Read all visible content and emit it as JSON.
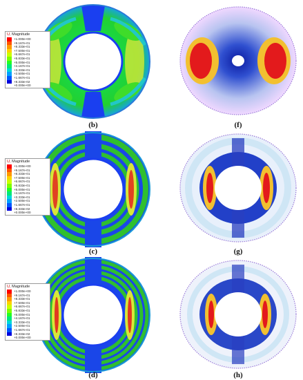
{
  "captions": {
    "b": "(b)",
    "c": "(c)",
    "d": "(d)",
    "f": "(f)",
    "g": "(g)",
    "h": "(h)"
  },
  "legend": {
    "title_prefix": "U,",
    "title_text": "Magnitude",
    "levels": [
      "+1.000e+00",
      "+9.167e-01",
      "+8.333e-01",
      "+7.500e-01",
      "+6.667e-01",
      "+5.833e-01",
      "+5.000e-01",
      "+4.167e-01",
      "+3.333e-01",
      "+2.500e-01",
      "+1.667e-01",
      "+8.333e-02",
      "+0.000e+00"
    ],
    "colors": [
      "#ff0000",
      "#ff5500",
      "#ff9900",
      "#ffd200",
      "#ccff00",
      "#7cff00",
      "#22ff22",
      "#00e87a",
      "#00d8d8",
      "#00a0ff",
      "#0055ff",
      "#0000dd"
    ]
  },
  "palette": {
    "fe_background": "#1548e6",
    "fe_green": "#2fbf2f",
    "fe_yellow": "#d8e63a",
    "fe_cyan": "#22c7c7",
    "hot": "#e31a1c"
  }
}
